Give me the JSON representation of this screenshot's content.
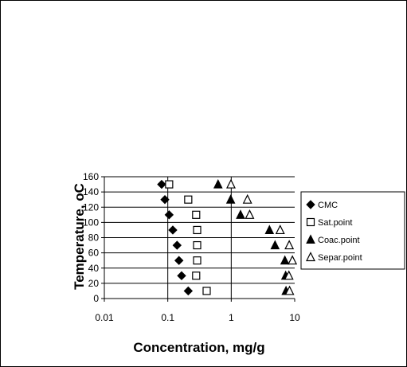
{
  "chart_data": {
    "type": "scatter",
    "title": "",
    "xlabel": "Concentration, mg/g",
    "ylabel": "Temperature, oC",
    "xscale": "log",
    "xlim": [
      0.01,
      10
    ],
    "ylim": [
      0,
      160
    ],
    "x_ticks": [
      "0.01",
      "0.1",
      "1",
      "10"
    ],
    "y_ticks": [
      "0",
      "20",
      "40",
      "60",
      "80",
      "100",
      "120",
      "140",
      "160"
    ],
    "grid": "horizontal",
    "legend_position": "right",
    "series": [
      {
        "name": "CMC",
        "marker": "diamond",
        "color": "#000000",
        "points": [
          {
            "x": 0.08,
            "y": 150
          },
          {
            "x": 0.09,
            "y": 130
          },
          {
            "x": 0.105,
            "y": 110
          },
          {
            "x": 0.12,
            "y": 90
          },
          {
            "x": 0.14,
            "y": 70
          },
          {
            "x": 0.15,
            "y": 50
          },
          {
            "x": 0.165,
            "y": 30
          },
          {
            "x": 0.21,
            "y": 10
          }
        ]
      },
      {
        "name": "Sat.point",
        "marker": "square-open",
        "color": "#000000",
        "points": [
          {
            "x": 0.105,
            "y": 150
          },
          {
            "x": 0.21,
            "y": 130
          },
          {
            "x": 0.28,
            "y": 110
          },
          {
            "x": 0.29,
            "y": 90
          },
          {
            "x": 0.29,
            "y": 70
          },
          {
            "x": 0.29,
            "y": 50
          },
          {
            "x": 0.28,
            "y": 30
          },
          {
            "x": 0.41,
            "y": 10
          }
        ]
      },
      {
        "name": "Coac.point",
        "marker": "triangle-filled",
        "color": "#000000",
        "points": [
          {
            "x": 0.62,
            "y": 150
          },
          {
            "x": 0.98,
            "y": 130
          },
          {
            "x": 1.4,
            "y": 110
          },
          {
            "x": 4.0,
            "y": 90
          },
          {
            "x": 4.9,
            "y": 70
          },
          {
            "x": 7.0,
            "y": 50
          },
          {
            "x": 7.2,
            "y": 30
          },
          {
            "x": 7.3,
            "y": 10
          }
        ]
      },
      {
        "name": "Separ.point",
        "marker": "triangle-open",
        "color": "#000000",
        "points": [
          {
            "x": 0.99,
            "y": 150
          },
          {
            "x": 1.8,
            "y": 130
          },
          {
            "x": 1.95,
            "y": 110
          },
          {
            "x": 5.9,
            "y": 90
          },
          {
            "x": 8.2,
            "y": 70
          },
          {
            "x": 9.2,
            "y": 50
          },
          {
            "x": 8.1,
            "y": 30
          },
          {
            "x": 8.3,
            "y": 10
          }
        ]
      }
    ]
  }
}
